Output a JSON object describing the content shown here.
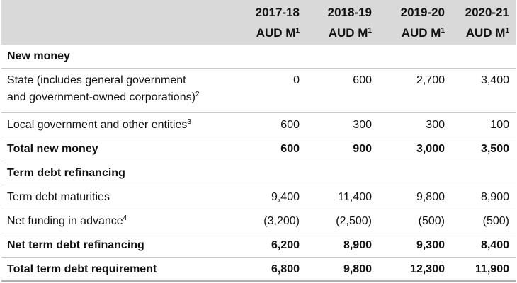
{
  "columns": [
    {
      "year": "2017-18",
      "unit": "AUD M",
      "note": "1"
    },
    {
      "year": "2018-19",
      "unit": "AUD M",
      "note": "1"
    },
    {
      "year": "2019-20",
      "unit": "AUD M",
      "note": "1"
    },
    {
      "year": "2020-21",
      "unit": "AUD M",
      "note": "1"
    }
  ],
  "sections": {
    "new_money": "New money",
    "term_debt_refinancing": "Term debt refinancing"
  },
  "rows": {
    "state": {
      "label_line1": "State (includes general government",
      "label_line2": "and government-owned corporations)",
      "note": "2",
      "values": [
        "0",
        "600",
        "2,700",
        "3,400"
      ]
    },
    "local": {
      "label": "Local government and other entities",
      "note": "3",
      "values": [
        "600",
        "300",
        "300",
        "100"
      ]
    },
    "total_new_money": {
      "label": "Total new money",
      "values": [
        "600",
        "900",
        "3,000",
        "3,500"
      ]
    },
    "maturities": {
      "label": "Term debt maturities",
      "values": [
        "9,400",
        "11,400",
        "9,800",
        "8,900"
      ]
    },
    "net_funding": {
      "label": "Net funding in advance",
      "note": "4",
      "values": [
        "(3,200)",
        "(2,500)",
        "(500)",
        "(500)"
      ]
    },
    "net_term": {
      "label": "Net term debt refinancing",
      "values": [
        "6,200",
        "8,900",
        "9,300",
        "8,400"
      ]
    },
    "total_term": {
      "label": "Total term debt requirement",
      "values": [
        "6,800",
        "9,800",
        "12,300",
        "11,900"
      ]
    }
  }
}
